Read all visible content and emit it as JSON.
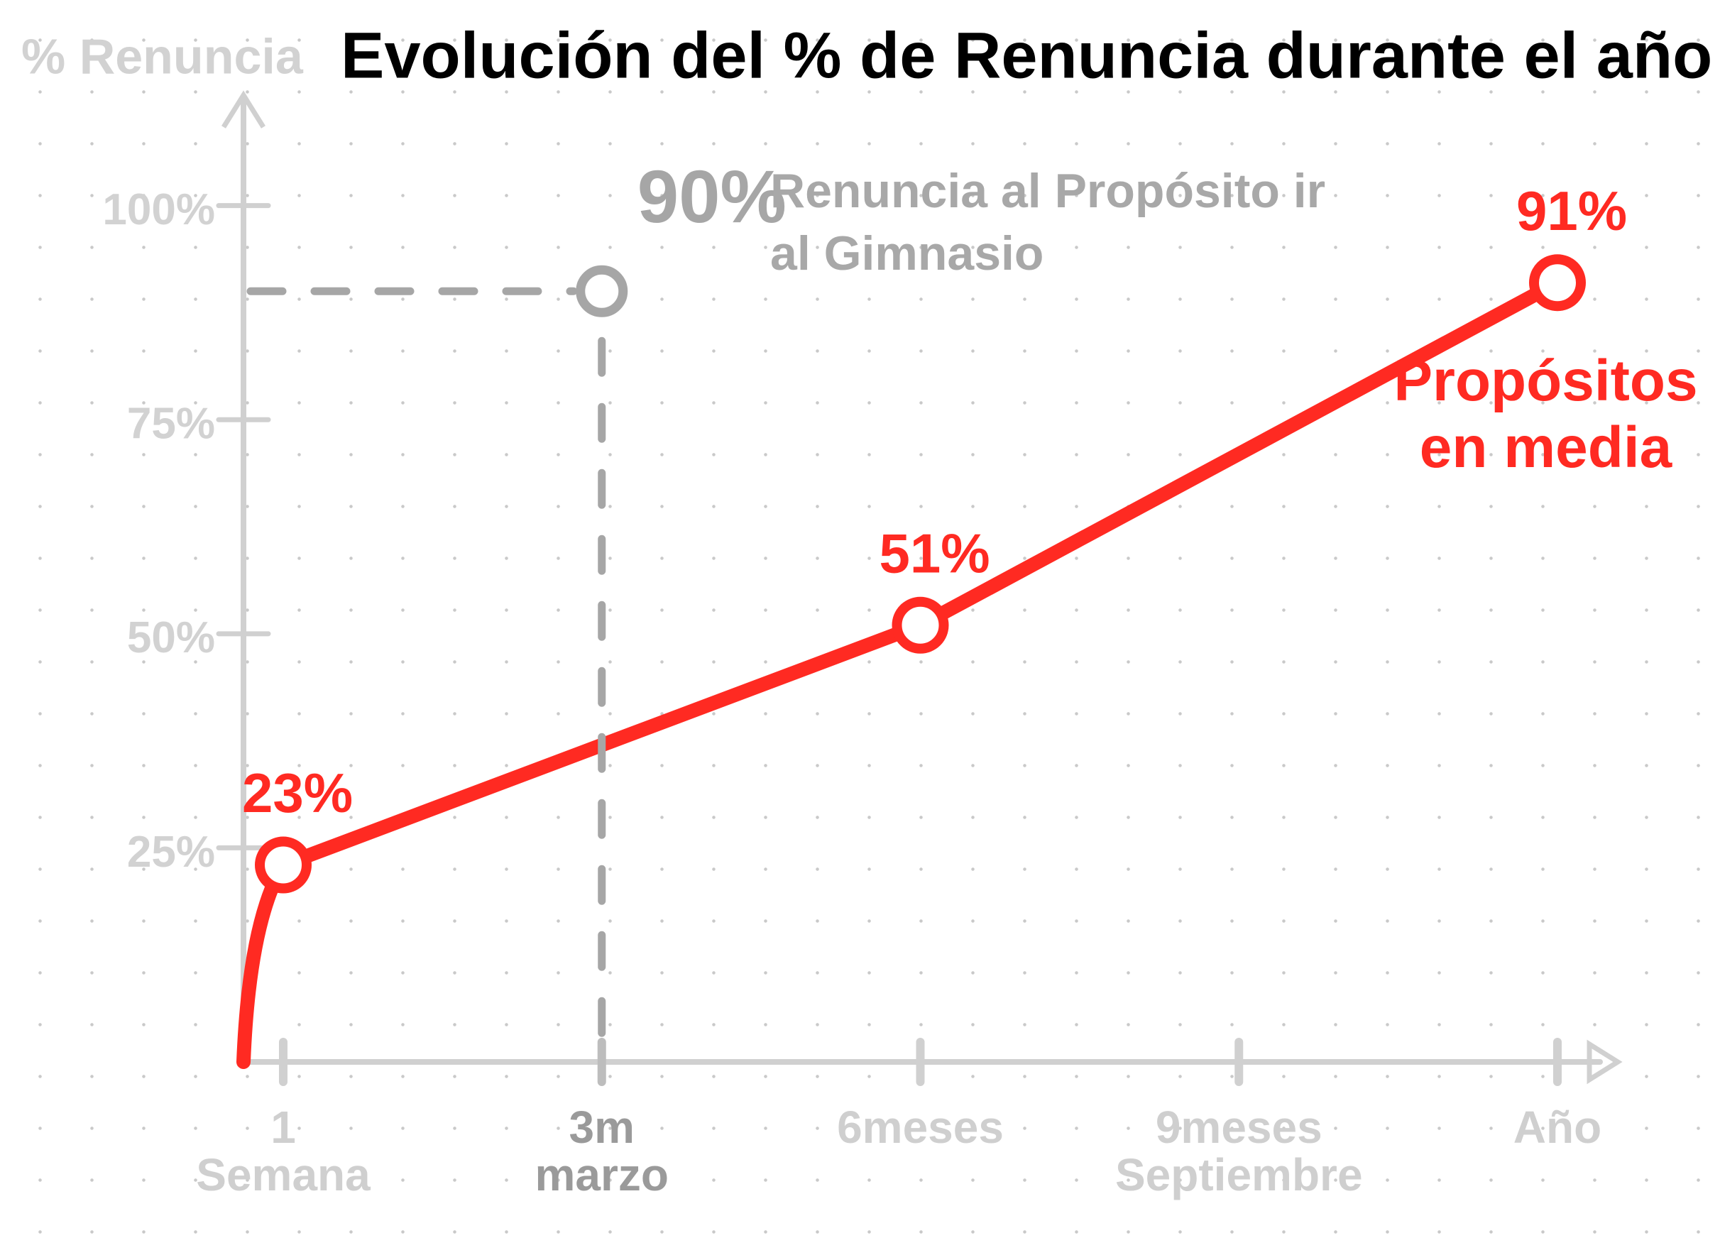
{
  "chart_data": {
    "type": "line",
    "title": "Evolución del % de Renuncia durante el año",
    "y_label": "% Renuncia",
    "categories": [
      "1 Semana",
      "3m marzo",
      "6meses",
      "9meses Septiembre",
      "Año"
    ],
    "series": [
      {
        "name": "Propósitos en media",
        "color": "#ff2a22",
        "values": [
          23,
          null,
          51,
          null,
          91
        ],
        "value_labels": [
          "23%",
          null,
          "51%",
          null,
          "91%"
        ]
      },
      {
        "color": "#a6a6a6",
        "style": "dashed",
        "values": [
          null,
          90,
          null,
          null,
          null
        ],
        "value_labels": [
          null,
          "90%",
          null,
          null,
          null
        ]
      }
    ],
    "annotation": "Renuncia al Propósito ir al Gimnasio",
    "ylim": [
      0,
      110
    ],
    "yticks": [
      {
        "value": 25,
        "label": "25%"
      },
      {
        "value": 50,
        "label": "50%"
      },
      {
        "value": 75,
        "label": "75%"
      },
      {
        "value": 100,
        "label": "100%"
      }
    ]
  }
}
